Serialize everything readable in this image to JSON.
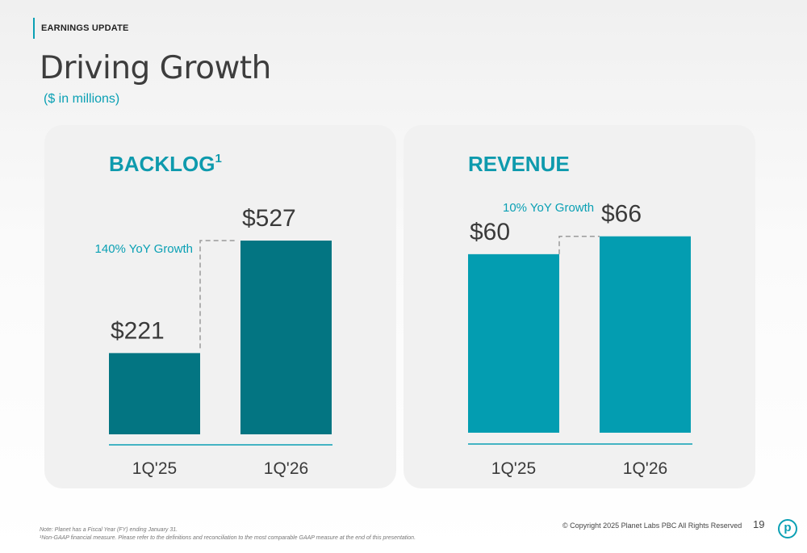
{
  "header": {
    "section_tag": "EARNINGS UPDATE",
    "title": "Driving Growth",
    "subtitle": "($ in millions)"
  },
  "chart_data": [
    {
      "type": "bar",
      "title": "BACKLOG",
      "title_superscript": "1",
      "categories": [
        "1Q'25",
        "1Q'26"
      ],
      "values": [
        221,
        527
      ],
      "value_labels": [
        "$221",
        "$527"
      ],
      "growth_label": "140% YoY Growth",
      "ylim": [
        0,
        560
      ],
      "bar_color": "#037582",
      "grid": false,
      "legend": "none"
    },
    {
      "type": "bar",
      "title": "REVENUE",
      "categories": [
        "1Q'25",
        "1Q'26"
      ],
      "values": [
        60,
        66
      ],
      "value_labels": [
        "$60",
        "$66"
      ],
      "growth_label": "10% YoY Growth",
      "ylim": [
        0,
        70
      ],
      "bar_color": "#039db1",
      "grid": false,
      "legend": "none"
    }
  ],
  "colors": {
    "accent": "#0aa0b4",
    "title_teal": "#0e9aad",
    "text_dark": "#3d3d3d"
  },
  "footer": {
    "note_line1": "Note: Planet has a Fiscal Year (FY) ending January 31.",
    "note_line2": "¹Non-GAAP financial measure. Please refer to the definitions and reconciliation to the most comparable GAAP measure at the end of this presentation.",
    "copyright": "© Copyright 2025 Planet Labs PBC  All Rights Reserved",
    "page_number": "19",
    "logo_letter": "p"
  }
}
